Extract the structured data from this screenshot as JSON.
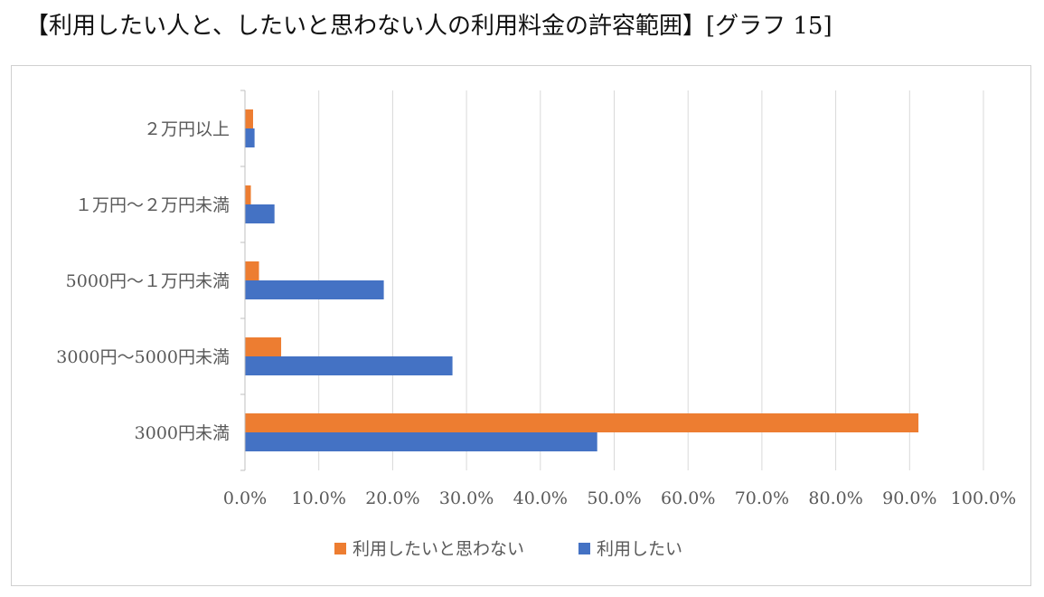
{
  "page": {
    "title": "【利用したい人と、したいと思わない人の利用料金の許容範囲】[グラフ 15]"
  },
  "chart_data": {
    "type": "bar",
    "orientation": "horizontal",
    "title": "",
    "xlabel": "",
    "ylabel": "",
    "categories": [
      "２万円以上",
      "１万円～２万円未満",
      "5000円～１万円未満",
      "3000円～5000円未満",
      "3000円未満"
    ],
    "series": [
      {
        "name": "利用したいと思わない",
        "color": "#ED7D31",
        "values": [
          1.1,
          0.8,
          1.9,
          4.9,
          91.2
        ]
      },
      {
        "name": "利用したい",
        "color": "#4472C4",
        "values": [
          1.3,
          4.0,
          18.8,
          28.1,
          47.7
        ]
      }
    ],
    "xlim": [
      0,
      100
    ],
    "xticks": [
      "0.0%",
      "10.0%",
      "20.0%",
      "30.0%",
      "40.0%",
      "50.0%",
      "60.0%",
      "70.0%",
      "80.0%",
      "90.0%",
      "100.0%"
    ],
    "grid": true,
    "legend": "bottom"
  }
}
